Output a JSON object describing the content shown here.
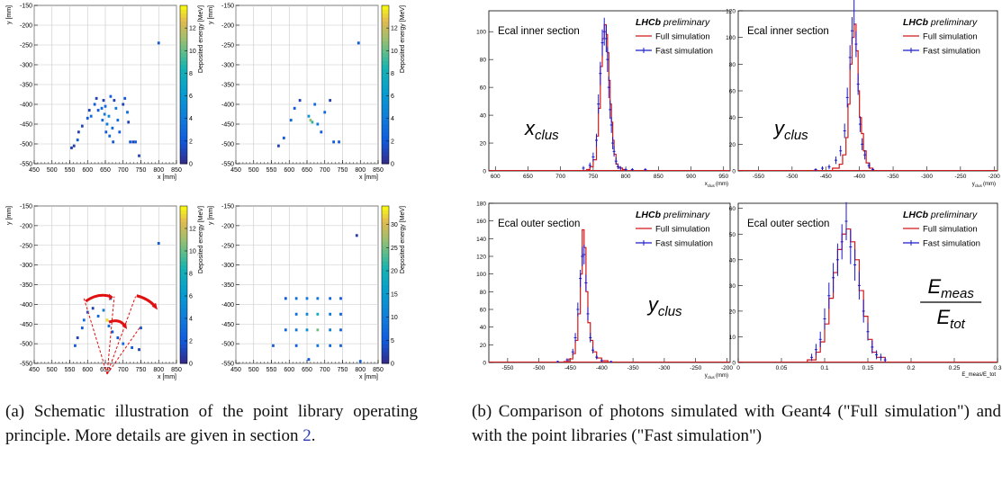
{
  "captions": {
    "a": {
      "label": "(a)",
      "text": "Schematic illustration of the point library operating principle. More details are given in section ",
      "ref": "2",
      "end": "."
    },
    "b": {
      "label": "(b)",
      "text": "Comparison of photons simulated with Geant4 (\"Full simulation\") and with the point libraries (\"Fast simulation\")"
    }
  },
  "colors": {
    "full": "#d01818",
    "fast": "#1a1acc",
    "highlight": "#f0e020",
    "arrow": "#e01010"
  },
  "chart_data": [
    {
      "type": "heatmap",
      "panel": "a-top-left",
      "xlabel": "x [mm]",
      "ylabel": "y [mm]",
      "zlabel": "Deposited energy [MeV]",
      "xlim": [
        450,
        850
      ],
      "ylim": [
        -550,
        -150
      ],
      "zlim": [
        0,
        14
      ],
      "xticks": [
        "450",
        "500",
        "550",
        "600",
        "650",
        "700",
        "750",
        "800",
        "850"
      ],
      "yticks": [
        "-550",
        "-500",
        "-450",
        "-400",
        "-350",
        "-300",
        "-250",
        "-200",
        "-150"
      ],
      "zticks": [
        "0",
        "2",
        "4",
        "6",
        "8",
        "10",
        "12"
      ],
      "cells": [
        [
          800,
          -245,
          2
        ],
        [
          555,
          -510,
          1
        ],
        [
          562,
          -505,
          1
        ],
        [
          572,
          -490,
          2
        ],
        [
          575,
          -470,
          1
        ],
        [
          585,
          -455,
          1
        ],
        [
          600,
          -435,
          2
        ],
        [
          605,
          -415,
          1
        ],
        [
          610,
          -430,
          3
        ],
        [
          620,
          -400,
          2
        ],
        [
          625,
          -385,
          1
        ],
        [
          630,
          -415,
          2
        ],
        [
          640,
          -410,
          3
        ],
        [
          642,
          -440,
          3
        ],
        [
          645,
          -390,
          1
        ],
        [
          648,
          -425,
          4
        ],
        [
          650,
          -405,
          3
        ],
        [
          652,
          -470,
          2
        ],
        [
          655,
          -450,
          4
        ],
        [
          660,
          -430,
          5
        ],
        [
          662,
          -480,
          3
        ],
        [
          665,
          -380,
          2
        ],
        [
          670,
          -460,
          3
        ],
        [
          672,
          -495,
          2
        ],
        [
          675,
          -390,
          1
        ],
        [
          680,
          -410,
          4
        ],
        [
          685,
          -440,
          3
        ],
        [
          690,
          -470,
          2
        ],
        [
          700,
          -400,
          1
        ],
        [
          705,
          -385,
          2
        ],
        [
          712,
          -420,
          3
        ],
        [
          715,
          -445,
          1
        ],
        [
          720,
          -495,
          2
        ],
        [
          728,
          -495,
          1
        ],
        [
          735,
          -495,
          2
        ],
        [
          745,
          -530,
          1
        ]
      ]
    },
    {
      "type": "heatmap",
      "panel": "a-top-right",
      "zlim": [
        0,
        14
      ],
      "zticks": [
        "0",
        "2",
        "4",
        "6",
        "8",
        "10",
        "12"
      ],
      "xlim": [
        450,
        850
      ],
      "ylim": [
        -550,
        -150
      ],
      "xticks": [
        "450",
        "500",
        "550",
        "600",
        "650",
        "700",
        "750",
        "800",
        "850"
      ],
      "yticks": [
        "-550",
        "-500",
        "-450",
        "-400",
        "-350",
        "-300",
        "-250",
        "-200",
        "-150"
      ],
      "xlabel": "x [mm]",
      "ylabel": "y [mm]",
      "zlabel": "Deposited energy [MeV]",
      "cells": [
        [
          795,
          -245,
          2
        ],
        [
          570,
          -505,
          1
        ],
        [
          585,
          -485,
          2
        ],
        [
          605,
          -440,
          3
        ],
        [
          615,
          -410,
          2
        ],
        [
          630,
          -390,
          1
        ],
        [
          655,
          -430,
          6
        ],
        [
          660,
          -440,
          11
        ],
        [
          665,
          -445,
          9
        ],
        [
          672,
          -400,
          3
        ],
        [
          680,
          -450,
          4
        ],
        [
          690,
          -470,
          2
        ],
        [
          700,
          -420,
          3
        ],
        [
          715,
          -390,
          1
        ],
        [
          725,
          -495,
          2
        ],
        [
          740,
          -495,
          2
        ]
      ]
    },
    {
      "type": "heatmap",
      "panel": "a-bottom-left",
      "zlim": [
        0,
        14
      ],
      "zticks": [
        "0",
        "2",
        "4",
        "6",
        "8",
        "10",
        "12"
      ],
      "xlim": [
        450,
        850
      ],
      "ylim": [
        -550,
        -150
      ],
      "xticks": [
        "450",
        "500",
        "550",
        "600",
        "650",
        "700",
        "750",
        "800",
        "850"
      ],
      "yticks": [
        "-550",
        "-500",
        "-450",
        "-400",
        "-350",
        "-300",
        "-250",
        "-200",
        "-150"
      ],
      "xlabel": "x [mm]",
      "ylabel": "y [mm]",
      "zlabel": "Deposited energy [MeV]",
      "cells": [
        [
          800,
          -245,
          2
        ],
        [
          565,
          -505,
          2
        ],
        [
          572,
          -485,
          1
        ],
        [
          585,
          -460,
          2
        ],
        [
          590,
          -440,
          3
        ],
        [
          600,
          -420,
          2
        ],
        [
          615,
          -410,
          1
        ],
        [
          630,
          -430,
          3
        ],
        [
          645,
          -415,
          4
        ],
        [
          655,
          -440,
          11
        ],
        [
          660,
          -455,
          3
        ],
        [
          665,
          -385,
          2
        ],
        [
          670,
          -470,
          2
        ],
        [
          685,
          -485,
          2
        ],
        [
          700,
          -500,
          3
        ],
        [
          725,
          -510,
          2
        ],
        [
          745,
          -515,
          1
        ],
        [
          750,
          -460,
          2
        ]
      ]
    },
    {
      "type": "heatmap",
      "panel": "a-bottom-right",
      "zlim": [
        0,
        34
      ],
      "zticks": [
        "0",
        "5",
        "10",
        "15",
        "20",
        "25",
        "30"
      ],
      "xlim": [
        450,
        850
      ],
      "ylim": [
        -550,
        -150
      ],
      "xticks": [
        "450",
        "500",
        "550",
        "600",
        "650",
        "700",
        "750",
        "800",
        "850"
      ],
      "yticks": [
        "-550",
        "-500",
        "-450",
        "-400",
        "-350",
        "-300",
        "-250",
        "-200",
        "-150"
      ],
      "xlabel": "x [mm]",
      "ylabel": "y [mm]",
      "zlabel": "Deposited energy [MeV]",
      "cells": [
        [
          790,
          -225,
          2
        ],
        [
          590,
          -385,
          5
        ],
        [
          620,
          -385,
          8
        ],
        [
          650,
          -385,
          10
        ],
        [
          680,
          -385,
          9
        ],
        [
          715,
          -385,
          6
        ],
        [
          745,
          -385,
          5
        ],
        [
          620,
          -425,
          8
        ],
        [
          650,
          -425,
          12
        ],
        [
          680,
          -425,
          20
        ],
        [
          715,
          -425,
          9
        ],
        [
          745,
          -425,
          6
        ],
        [
          590,
          -465,
          6
        ],
        [
          620,
          -465,
          9
        ],
        [
          650,
          -465,
          14
        ],
        [
          680,
          -465,
          25
        ],
        [
          715,
          -465,
          10
        ],
        [
          745,
          -465,
          6
        ],
        [
          555,
          -505,
          5
        ],
        [
          620,
          -505,
          6
        ],
        [
          680,
          -505,
          9
        ],
        [
          715,
          -505,
          7
        ],
        [
          745,
          -505,
          6
        ],
        [
          655,
          -540,
          5
        ],
        [
          800,
          -545,
          6
        ]
      ]
    },
    {
      "type": "line",
      "panel": "b-top-left",
      "title": "Ecal inner section",
      "brand": "LHCb",
      "brand_suffix": "preliminary",
      "legend": [
        "Full simulation",
        "Fast simulation"
      ],
      "varlabel": "x_clus",
      "xlabel": "x_clus (mm)",
      "xlim": [
        590,
        960
      ],
      "ylim": [
        0,
        115
      ],
      "xticks": [
        600,
        650,
        700,
        750,
        800,
        850,
        900,
        950
      ],
      "yticks": [
        0,
        20,
        40,
        60,
        80,
        100
      ],
      "series": [
        {
          "name": "Full simulation",
          "x": [
            740,
            745,
            750,
            755,
            758,
            761,
            764,
            767,
            770,
            772,
            774,
            776,
            778,
            780,
            782,
            785,
            788,
            790,
            795,
            800
          ],
          "y": [
            1,
            3,
            8,
            25,
            45,
            75,
            95,
            105,
            98,
            85,
            65,
            48,
            35,
            22,
            12,
            5,
            3,
            2,
            1,
            0
          ]
        },
        {
          "name": "Fast simulation",
          "x": [
            735,
            745,
            750,
            755,
            758,
            761,
            764,
            767,
            770,
            772,
            774,
            776,
            778,
            780,
            782,
            785,
            788,
            792,
            800,
            810,
            830
          ],
          "y": [
            2,
            4,
            10,
            22,
            48,
            70,
            92,
            100,
            95,
            80,
            60,
            44,
            33,
            20,
            14,
            7,
            3,
            2,
            1,
            1,
            1
          ]
        }
      ]
    },
    {
      "type": "line",
      "panel": "b-top-right",
      "title": "Ecal inner section",
      "brand": "LHCb",
      "brand_suffix": "preliminary",
      "legend": [
        "Full simulation",
        "Fast simulation"
      ],
      "varlabel": "y_clus",
      "xlabel": "y_clus (mm)",
      "xlim": [
        -580,
        -195
      ],
      "ylim": [
        0,
        120
      ],
      "xticks": [
        -550,
        -500,
        -450,
        -400,
        -350,
        -300,
        -250,
        -200
      ],
      "yticks": [
        0,
        20,
        40,
        60,
        80,
        100,
        120
      ],
      "series": [
        {
          "name": "Full simulation",
          "x": [
            -440,
            -430,
            -425,
            -420,
            -417,
            -414,
            -411,
            -408,
            -405,
            -402,
            -400,
            -397,
            -394,
            -390,
            -385,
            -380
          ],
          "y": [
            2,
            5,
            12,
            25,
            50,
            80,
            100,
            110,
            90,
            60,
            40,
            28,
            15,
            6,
            2,
            0
          ]
        },
        {
          "name": "Fast simulation",
          "x": [
            -465,
            -455,
            -445,
            -435,
            -428,
            -422,
            -418,
            -414,
            -411,
            -408,
            -405,
            -402,
            -399,
            -396,
            -392,
            -386,
            -380
          ],
          "y": [
            1,
            2,
            3,
            8,
            15,
            30,
            55,
            85,
            105,
            120,
            95,
            65,
            35,
            20,
            12,
            4,
            1
          ]
        }
      ]
    },
    {
      "type": "line",
      "panel": "b-bottom-left",
      "title": "Ecal outer section",
      "brand": "LHCb",
      "brand_suffix": "preliminary",
      "legend": [
        "Full simulation",
        "Fast simulation"
      ],
      "varlabel": "y_clus",
      "xlabel": "y_clus (mm)",
      "xlim": [
        -580,
        -195
      ],
      "ylim": [
        0,
        180
      ],
      "xticks": [
        -550,
        -500,
        -450,
        -400,
        -350,
        -300,
        -250,
        -200
      ],
      "yticks": [
        0,
        20,
        40,
        60,
        80,
        100,
        120,
        140,
        160,
        180
      ],
      "series": [
        {
          "name": "Full simulation",
          "x": [
            -460,
            -452,
            -446,
            -442,
            -438,
            -434,
            -431,
            -428,
            -425,
            -422,
            -418,
            -414,
            -408,
            -400,
            -390
          ],
          "y": [
            1,
            4,
            10,
            25,
            55,
            100,
            150,
            130,
            80,
            45,
            25,
            12,
            5,
            2,
            0
          ]
        },
        {
          "name": "Fast simulation",
          "x": [
            -470,
            -455,
            -446,
            -442,
            -438,
            -434,
            -431,
            -428,
            -425,
            -422,
            -418,
            -414,
            -408,
            -400,
            -385
          ],
          "y": [
            1,
            3,
            12,
            28,
            60,
            95,
            120,
            122,
            90,
            55,
            28,
            14,
            6,
            2,
            1
          ]
        }
      ]
    },
    {
      "type": "line",
      "panel": "b-bottom-right",
      "title": "Ecal outer section",
      "brand": "LHCb",
      "brand_suffix": "preliminary",
      "legend": [
        "Full simulation",
        "Fast simulation"
      ],
      "varlabel": "E_meas/E_tot",
      "xlabel": "E_meas/E_tot",
      "xlim": [
        0,
        0.3
      ],
      "ylim": [
        0,
        62
      ],
      "xticks": [
        0,
        0.05,
        0.1,
        0.15,
        0.2,
        0.25,
        0.3
      ],
      "yticks": [
        0,
        10,
        20,
        30,
        40,
        50,
        60
      ],
      "series": [
        {
          "name": "Full simulation",
          "x": [
            0.08,
            0.09,
            0.095,
            0.1,
            0.105,
            0.11,
            0.115,
            0.12,
            0.125,
            0.13,
            0.135,
            0.14,
            0.145,
            0.15,
            0.155,
            0.16,
            0.17
          ],
          "y": [
            1,
            4,
            8,
            15,
            25,
            35,
            44,
            50,
            52,
            47,
            40,
            28,
            18,
            9,
            4,
            2,
            0
          ]
        },
        {
          "name": "Fast simulation",
          "x": [
            0.085,
            0.09,
            0.095,
            0.1,
            0.105,
            0.11,
            0.115,
            0.12,
            0.125,
            0.13,
            0.135,
            0.14,
            0.145,
            0.15,
            0.155,
            0.16,
            0.165,
            0.17
          ],
          "y": [
            2,
            5,
            9,
            17,
            26,
            33,
            40,
            47,
            55,
            45,
            38,
            30,
            20,
            12,
            6,
            3,
            2,
            1
          ]
        }
      ]
    }
  ]
}
